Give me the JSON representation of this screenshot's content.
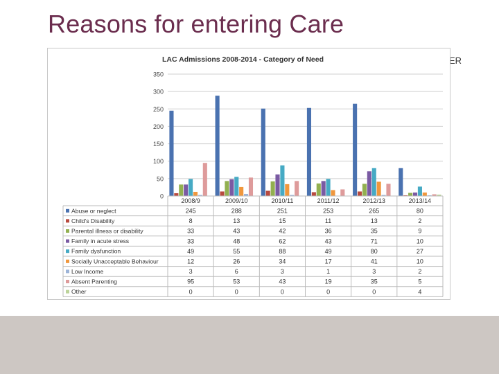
{
  "slide": {
    "title": "Reasons for entering Care",
    "corner_label": "ER"
  },
  "colors": {
    "title": "#6b2d4e",
    "band": "#cdc7c3"
  },
  "chart_data": {
    "type": "bar",
    "title": "LAC Admissions 2008-2014  - Category of Need",
    "xlabel": "",
    "ylabel": "",
    "ylim": [
      0,
      350
    ],
    "yticks": [
      0,
      50,
      100,
      150,
      200,
      250,
      300,
      350
    ],
    "grid": true,
    "legend": "table-below",
    "categories": [
      "2008/9",
      "2009/10",
      "2010/11",
      "2011/12",
      "2012/13",
      "2013/14"
    ],
    "series": [
      {
        "name": "Abuse or neglect",
        "color": "#4a72b0",
        "values": [
          245,
          288,
          251,
          253,
          265,
          80
        ]
      },
      {
        "name": "Child's Disability",
        "color": "#b84a3f",
        "values": [
          8,
          13,
          15,
          11,
          13,
          2
        ]
      },
      {
        "name": "Parental illness or disability",
        "color": "#92b050",
        "values": [
          33,
          43,
          42,
          36,
          35,
          9
        ]
      },
      {
        "name": "Family in acute stress",
        "color": "#7a5aa3",
        "values": [
          33,
          48,
          62,
          43,
          71,
          10
        ]
      },
      {
        "name": "Family dysfunction",
        "color": "#46aac4",
        "values": [
          49,
          55,
          88,
          49,
          80,
          27
        ]
      },
      {
        "name": "Socially Unacceptable Behaviour",
        "color": "#f0973d",
        "values": [
          12,
          26,
          34,
          17,
          41,
          10
        ]
      },
      {
        "name": "Low Income",
        "color": "#9db4d8",
        "values": [
          3,
          6,
          3,
          1,
          3,
          2
        ]
      },
      {
        "name": "Absent Parenting",
        "color": "#de9b9b",
        "values": [
          95,
          53,
          43,
          19,
          35,
          5
        ]
      },
      {
        "name": "Other",
        "color": "#bcd39a",
        "values": [
          0,
          0,
          0,
          0,
          0,
          4
        ]
      }
    ]
  }
}
